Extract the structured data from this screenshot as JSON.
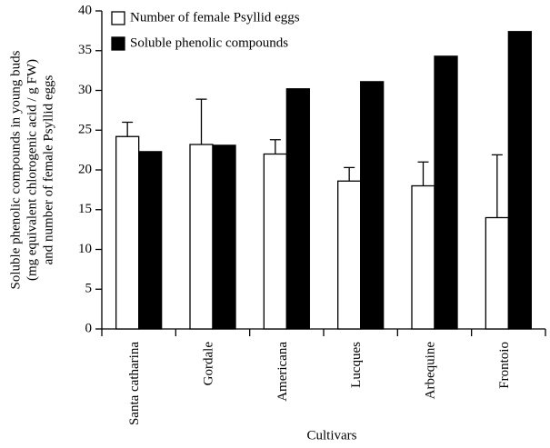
{
  "chart_data": {
    "type": "bar",
    "ylabel": [
      "Soluble phenolic compounds in young buds",
      "(mg equivalent chlorogenic acid / g FW)",
      "and number of female Psyllid eggs"
    ],
    "xlabel": "Cultivars",
    "categories": [
      "Santa catharina",
      "Gordale",
      "Americana",
      "Lucques",
      "Arbequine",
      "Frontoio"
    ],
    "series": [
      {
        "name": "Number of female Psyllid eggs",
        "color": "#ffffff",
        "values": [
          24.2,
          23.2,
          22,
          18.6,
          18,
          14
        ],
        "errors": [
          1.8,
          5.7,
          1.8,
          1.7,
          3,
          7.9
        ]
      },
      {
        "name": "Soluble phenolic compounds",
        "color": "#000000",
        "values": [
          22.3,
          23.1,
          30.2,
          31.1,
          34.3,
          37.4
        ]
      }
    ],
    "ylim": [
      0,
      40
    ],
    "yticks": [
      0,
      5,
      10,
      15,
      20,
      25,
      30,
      35,
      40
    ],
    "legend": "upper left"
  }
}
